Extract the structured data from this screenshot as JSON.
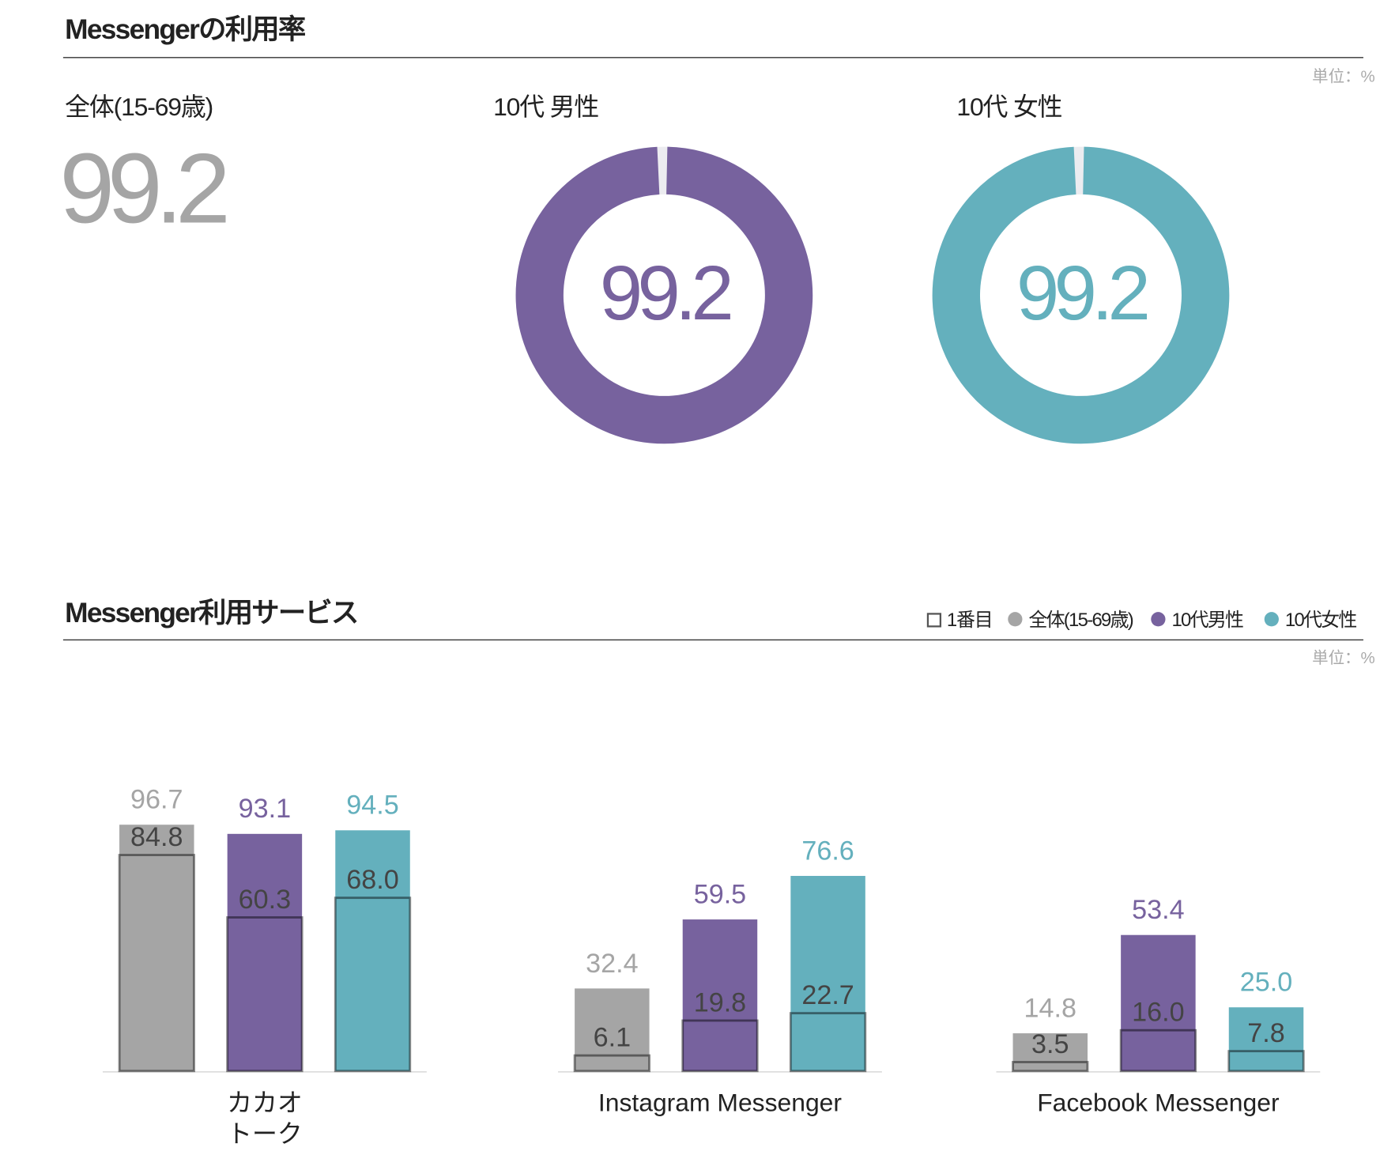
{
  "chart_data": [
    {
      "type": "donut",
      "title": "Messengerの利用率",
      "unit_label": "単位：%",
      "overall_label": "全体(15-69歳)",
      "overall_value": 99.2,
      "overall_color": "#a5a5a5",
      "ylim": [
        0,
        100
      ],
      "series": [
        {
          "name": "10代 男性",
          "color": "#77629e",
          "value": 99.2
        },
        {
          "name": "10代 女性",
          "color": "#64b0bd",
          "value": 99.2
        }
      ]
    },
    {
      "type": "bar",
      "title": "Messenger利用サービス",
      "unit_label": "単位：%",
      "first_legend": "1番目",
      "categories": [
        [
          "カカオ",
          "トーク"
        ],
        "Instagram Messenger",
        "Facebook Messenger"
      ],
      "ylim": [
        0,
        100
      ],
      "series": [
        {
          "name": "全体(15-69歳)",
          "color": "#a5a5a5",
          "values": [
            96.7,
            32.4,
            14.8
          ],
          "value_labels": [
            "96.7",
            "32.4",
            "14.8"
          ],
          "first_values": [
            84.8,
            6.1,
            3.5
          ],
          "first_value_labels": [
            "84.8",
            "6.1",
            "3.5"
          ]
        },
        {
          "name": "10代男性",
          "color": "#77629e",
          "values": [
            93.1,
            59.5,
            53.4
          ],
          "value_labels": [
            "93.1",
            "59.5",
            "53.4"
          ],
          "first_values": [
            60.3,
            19.8,
            16.0
          ],
          "first_value_labels": [
            "60.3",
            "19.8",
            "16.0"
          ]
        },
        {
          "name": "10代女性",
          "color": "#64b0bd",
          "values": [
            94.5,
            76.6,
            25.0
          ],
          "value_labels": [
            "94.5",
            "76.6",
            "25.0"
          ],
          "first_values": [
            68.0,
            22.7,
            7.8
          ],
          "first_value_labels": [
            "68.0",
            "22.7",
            "7.8"
          ]
        }
      ]
    }
  ]
}
